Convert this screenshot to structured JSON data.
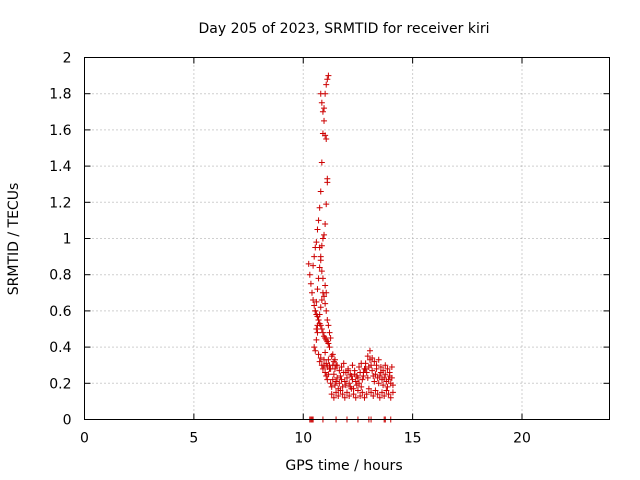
{
  "chart_data": {
    "type": "scatter",
    "title": "Day 205 of 2023, SRMTID for receiver kiri",
    "xlabel": "GPS time / hours",
    "ylabel": "SRMTID / TECUs",
    "xlim": [
      0,
      24
    ],
    "ylim": [
      0,
      2
    ],
    "xticks": [
      0,
      5,
      10,
      15,
      20
    ],
    "xtick_labels": [
      "0",
      "5",
      "10",
      "15",
      "20"
    ],
    "yticks": [
      0,
      0.2,
      0.4,
      0.6,
      0.8,
      1,
      1.2,
      1.4,
      1.6,
      1.8,
      2
    ],
    "ytick_labels": [
      "0",
      "0.2",
      "0.4",
      "0.6",
      "0.8",
      "1",
      "1.2",
      "1.4",
      "1.6",
      "1.8",
      "2"
    ],
    "grid": true,
    "marker": "+",
    "color": "#cc0000",
    "series": [
      {
        "name": "SRMTID",
        "x": [
          10.25,
          10.3,
          10.35,
          10.4,
          10.45,
          10.5,
          10.55,
          10.6,
          10.65,
          10.7,
          10.75,
          10.8,
          10.85,
          10.9,
          10.95,
          11.0,
          11.05,
          11.1,
          11.15,
          11.2,
          10.45,
          10.5,
          10.55,
          10.6,
          10.65,
          10.7,
          10.75,
          10.8,
          10.85,
          10.9,
          10.95,
          11.0,
          11.05,
          11.1,
          11.15,
          10.55,
          10.6,
          10.65,
          10.7,
          10.75,
          10.8,
          10.85,
          10.9,
          10.95,
          11.0,
          11.05,
          11.1,
          10.8,
          10.85,
          10.9,
          10.95,
          11.0,
          11.05,
          11.1,
          10.75,
          10.8,
          10.85,
          10.9,
          11.0,
          11.05,
          10.6,
          10.65,
          10.7,
          10.75,
          10.8,
          10.85,
          10.9,
          10.95,
          11.0,
          11.05,
          11.1,
          11.15,
          11.2,
          11.25,
          10.5,
          10.55,
          10.6,
          10.65,
          10.7,
          10.75,
          10.8,
          10.85,
          10.9,
          10.95,
          11.0,
          11.05,
          11.1,
          11.15,
          11.2,
          11.25,
          11.3,
          11.35,
          11.4,
          11.45,
          11.5,
          10.95,
          11.0,
          11.05,
          11.1,
          11.15,
          11.2,
          11.25,
          11.3,
          11.35,
          11.4,
          11.45,
          11.5,
          11.55,
          11.6,
          11.65,
          11.7,
          11.75,
          11.8,
          11.85,
          11.9,
          11.95,
          12.0,
          12.05,
          12.1,
          12.15,
          12.2,
          12.25,
          12.3,
          12.35,
          12.4,
          12.45,
          12.5,
          12.55,
          12.6,
          12.65,
          12.7,
          12.75,
          12.8,
          12.85,
          12.9,
          12.95,
          13.0,
          13.05,
          13.1,
          13.15,
          13.2,
          13.25,
          13.3,
          13.35,
          13.4,
          13.45,
          13.5,
          13.55,
          13.6,
          13.65,
          13.7,
          13.75,
          13.8,
          13.85,
          13.9,
          13.95,
          14.0,
          14.05,
          14.1,
          11.3,
          11.4,
          11.5,
          11.6,
          11.7,
          11.8,
          11.9,
          12.0,
          12.1,
          12.2,
          12.3,
          12.4,
          12.5,
          12.6,
          12.7,
          12.8,
          12.9,
          13.0,
          13.1,
          13.2,
          13.3,
          13.4,
          13.5,
          13.6,
          13.7,
          13.8,
          13.9,
          14.0,
          14.1,
          11.35,
          11.45,
          11.55,
          11.65,
          11.75,
          11.85,
          11.95,
          12.05,
          12.15,
          12.25,
          12.35,
          12.45,
          12.55,
          12.65,
          12.75,
          12.85,
          12.95,
          13.05,
          13.15,
          13.25,
          13.35,
          13.45,
          13.55,
          13.65,
          13.75,
          13.85,
          13.95,
          14.05,
          10.3,
          10.35,
          10.4,
          10.45,
          10.9,
          11.5,
          12.0,
          12.5,
          13.0,
          13.1,
          13.7,
          13.75,
          14.0
        ],
        "y": [
          0.86,
          0.8,
          0.75,
          0.7,
          0.66,
          0.63,
          0.6,
          0.58,
          0.57,
          0.55,
          0.53,
          0.52,
          0.5,
          0.48,
          0.46,
          0.45,
          0.44,
          0.43,
          0.42,
          0.4,
          0.85,
          0.9,
          0.95,
          0.98,
          1.05,
          1.1,
          1.17,
          1.26,
          1.42,
          1.58,
          1.72,
          1.8,
          1.85,
          1.88,
          1.9,
          0.6,
          0.65,
          0.72,
          0.78,
          0.84,
          0.9,
          0.96,
          1.0,
          1.02,
          1.08,
          1.19,
          1.33,
          1.8,
          1.75,
          1.7,
          1.65,
          1.57,
          1.55,
          1.31,
          0.95,
          0.88,
          0.82,
          0.78,
          0.74,
          0.7,
          0.5,
          0.52,
          0.55,
          0.58,
          0.62,
          0.66,
          0.7,
          0.68,
          0.64,
          0.6,
          0.55,
          0.52,
          0.48,
          0.45,
          0.4,
          0.38,
          0.44,
          0.48,
          0.36,
          0.32,
          0.34,
          0.3,
          0.28,
          0.33,
          0.37,
          0.31,
          0.29,
          0.33,
          0.3,
          0.28,
          0.35,
          0.3,
          0.32,
          0.28,
          0.3,
          0.3,
          0.26,
          0.24,
          0.22,
          0.25,
          0.28,
          0.2,
          0.18,
          0.22,
          0.25,
          0.19,
          0.21,
          0.23,
          0.17,
          0.2,
          0.24,
          0.22,
          0.18,
          0.26,
          0.21,
          0.19,
          0.23,
          0.27,
          0.2,
          0.18,
          0.24,
          0.22,
          0.17,
          0.25,
          0.21,
          0.19,
          0.23,
          0.2,
          0.26,
          0.18,
          0.22,
          0.24,
          0.28,
          0.31,
          0.26,
          0.23,
          0.29,
          0.33,
          0.3,
          0.27,
          0.24,
          0.21,
          0.25,
          0.28,
          0.23,
          0.2,
          0.24,
          0.26,
          0.22,
          0.19,
          0.23,
          0.25,
          0.21,
          0.18,
          0.22,
          0.24,
          0.2,
          0.23,
          0.19,
          0.14,
          0.12,
          0.15,
          0.13,
          0.16,
          0.14,
          0.12,
          0.15,
          0.13,
          0.17,
          0.14,
          0.12,
          0.16,
          0.13,
          0.15,
          0.12,
          0.14,
          0.17,
          0.15,
          0.13,
          0.16,
          0.14,
          0.12,
          0.15,
          0.13,
          0.16,
          0.14,
          0.12,
          0.15,
          0.36,
          0.33,
          0.3,
          0.27,
          0.29,
          0.31,
          0.26,
          0.28,
          0.25,
          0.3,
          0.27,
          0.24,
          0.29,
          0.31,
          0.26,
          0.28,
          0.35,
          0.38,
          0.34,
          0.32,
          0.3,
          0.33,
          0.29,
          0.27,
          0.3,
          0.28,
          0.26,
          0.29,
          0.0,
          0.0,
          0.0,
          0.0,
          0.0,
          0.0,
          0.0,
          0.0,
          0.0,
          0.0,
          0.0,
          0.0,
          0.0
        ]
      }
    ]
  }
}
